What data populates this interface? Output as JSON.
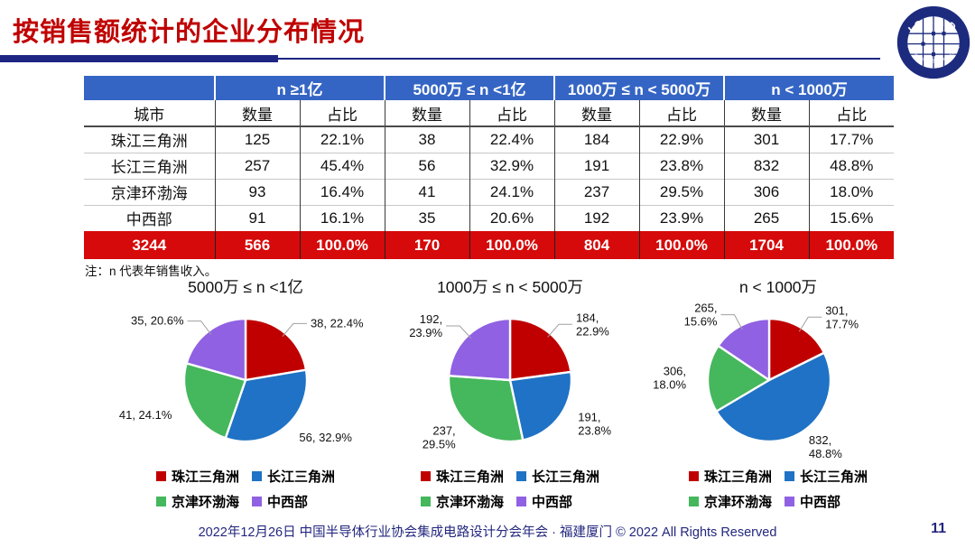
{
  "title": "按销售额统计的企业分布情况",
  "logo": {
    "top_text": "ICCAD",
    "ring_text": "中国半导体行业协会集成电路设计分会"
  },
  "table": {
    "corner_label": "城市",
    "groups": [
      "n ≥1亿",
      "5000万 ≤ n <1亿",
      "1000万 ≤ n < 5000万",
      "n < 1000万"
    ],
    "sub_headers": [
      "数量",
      "占比"
    ],
    "rows": [
      {
        "city": "珠江三角洲",
        "cells": [
          "125",
          "22.1%",
          "38",
          "22.4%",
          "184",
          "22.9%",
          "301",
          "17.7%"
        ]
      },
      {
        "city": "长江三角洲",
        "cells": [
          "257",
          "45.4%",
          "56",
          "32.9%",
          "191",
          "23.8%",
          "832",
          "48.8%"
        ]
      },
      {
        "city": "京津环渤海",
        "cells": [
          "93",
          "16.4%",
          "41",
          "24.1%",
          "237",
          "29.5%",
          "306",
          "18.0%"
        ]
      },
      {
        "city": "中西部",
        "cells": [
          "91",
          "16.1%",
          "35",
          "20.6%",
          "192",
          "23.9%",
          "265",
          "15.6%"
        ]
      }
    ],
    "total_row": {
      "city": "3244",
      "cells": [
        "566",
        "100.0%",
        "170",
        "100.0%",
        "804",
        "100.0%",
        "1704",
        "100.0%"
      ]
    }
  },
  "note": "注：n 代表年销售收入。",
  "colors": {
    "title_red": "#c00000",
    "underline_navy": "#1f2582",
    "header_blue": "#3565c4",
    "total_row_red": "#d60a0a",
    "footer_navy": "#23277e",
    "series": [
      "#c00000",
      "#1f72c5",
      "#45b75c",
      "#9061e3"
    ]
  },
  "chart_data": [
    {
      "type": "pie",
      "title": "5000万 ≤ n <1亿",
      "categories": [
        "珠江三角洲",
        "长江三角洲",
        "京津环渤海",
        "中西部"
      ],
      "values": [
        38,
        56,
        41,
        35
      ],
      "percents": [
        "22.4%",
        "32.9%",
        "24.1%",
        "20.6%"
      ],
      "colors": [
        "#c00000",
        "#1f72c5",
        "#45b75c",
        "#9061e3"
      ],
      "label_style": "single",
      "legend_position": "bottom"
    },
    {
      "type": "pie",
      "title": "1000万 ≤ n < 5000万",
      "categories": [
        "珠江三角洲",
        "长江三角洲",
        "京津环渤海",
        "中西部"
      ],
      "values": [
        184,
        191,
        237,
        192
      ],
      "percents": [
        "22.9%",
        "23.8%",
        "29.5%",
        "23.9%"
      ],
      "colors": [
        "#c00000",
        "#1f72c5",
        "#45b75c",
        "#9061e3"
      ],
      "label_style": "two-line",
      "legend_position": "bottom"
    },
    {
      "type": "pie",
      "title": "n < 1000万",
      "categories": [
        "珠江三角洲",
        "长江三角洲",
        "京津环渤海",
        "中西部"
      ],
      "values": [
        301,
        832,
        306,
        265
      ],
      "percents": [
        "17.7%",
        "48.8%",
        "18.0%",
        "15.6%"
      ],
      "colors": [
        "#c00000",
        "#1f72c5",
        "#45b75c",
        "#9061e3"
      ],
      "label_style": "two-line",
      "legend_position": "bottom"
    }
  ],
  "footer": {
    "text": "2022年12月26日 中国半导体行业协会集成电路设计分会年会 · 福建厦门 © 2022 All Rights Reserved",
    "page": "11"
  }
}
